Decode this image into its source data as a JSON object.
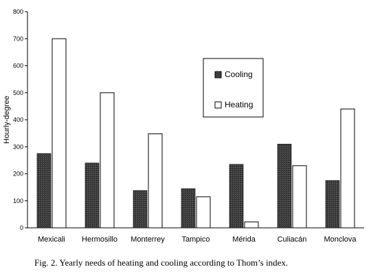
{
  "chart_data": {
    "type": "bar",
    "categories": [
      "Mexicali",
      "Hermosillo",
      "Monterrey",
      "Tampico",
      "Mérida",
      "Culiacán",
      "Monclova"
    ],
    "series": [
      {
        "name": "Cooling",
        "values": [
          275,
          240,
          138,
          145,
          235,
          310,
          175
        ]
      },
      {
        "name": "Heating",
        "values": [
          700,
          500,
          348,
          115,
          22,
          230,
          440
        ]
      }
    ],
    "ylabel": "Hourly-degree",
    "xlabel": "",
    "ylim": [
      0,
      800
    ],
    "yticks": [
      0,
      100,
      200,
      300,
      400,
      500,
      600,
      700,
      800
    ],
    "grid": false,
    "legend_position": "top-center",
    "colors": {
      "Cooling": "#3a3a3a",
      "Heating": "#ffffff"
    }
  },
  "caption": "Fig. 2. Yearly needs of heating and cooling according to Thom’s index."
}
